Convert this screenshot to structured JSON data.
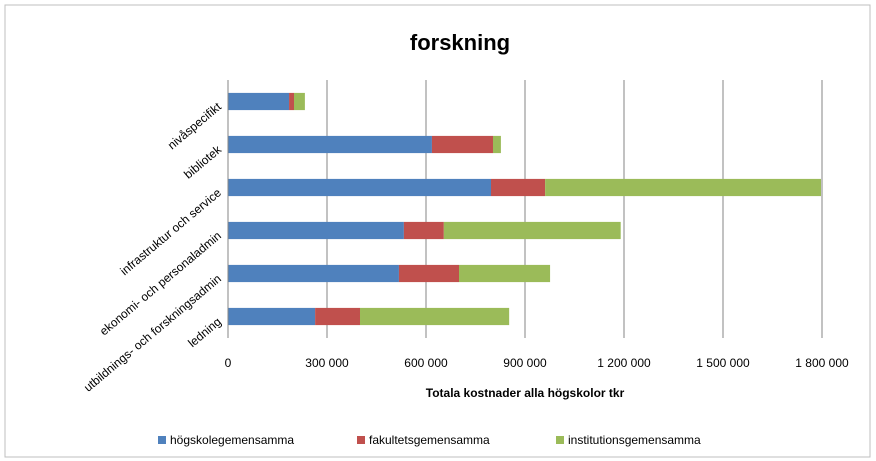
{
  "chart_data": {
    "type": "stacked_barh",
    "title": "forskning",
    "xlabel": "Totala kostnader alla högskolor tkr",
    "categories": [
      "nivåspecifikt",
      "bibliotek",
      "infrastruktur och service",
      "ekonomi- och personaladmin",
      "utbildnings- och forskningsadmin",
      "ledning"
    ],
    "series": [
      {
        "name": "högskolegemensamma",
        "color": "#4f81bd",
        "values": [
          185000,
          618000,
          797000,
          533000,
          518000,
          264000
        ]
      },
      {
        "name": "fakultetsgemensamma",
        "color": "#c0504d",
        "values": [
          15000,
          185000,
          164000,
          121000,
          182000,
          136000
        ]
      },
      {
        "name": "institutionsgemensamma",
        "color": "#9bbb59",
        "values": [
          33000,
          24000,
          836000,
          536000,
          276000,
          452000
        ]
      }
    ],
    "xlim": [
      0,
      1800000
    ],
    "xticks": [
      0,
      {
        "value": 300000,
        "label": "300 000"
      },
      {
        "value": 600000,
        "label": "600 000"
      },
      {
        "value": 900000,
        "label": "900 000"
      },
      {
        "value": 1200000,
        "label": "1 200 000"
      },
      {
        "value": 1500000,
        "label": "1 500 000"
      },
      {
        "value": 1800000,
        "label": "1 800 000"
      }
    ],
    "grid": true,
    "legend": "bottom"
  }
}
